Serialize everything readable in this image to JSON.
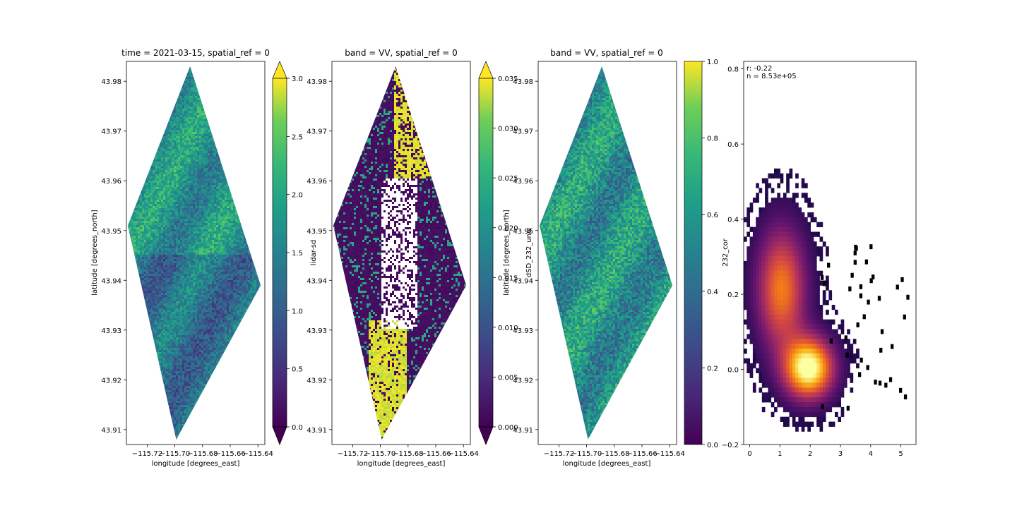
{
  "chart_data": [
    {
      "type": "heatmap",
      "title": "time = 2021-03-15, spatial_ref = 0",
      "xlabel": "longitude [degrees_east]",
      "ylabel": "latitude [degrees_north]",
      "xlim": [
        -115.735,
        -115.635
      ],
      "ylim": [
        43.907,
        43.984
      ],
      "x_ticks": [
        -115.72,
        -115.7,
        -115.68,
        -115.66,
        -115.64
      ],
      "x_tick_labels": [
        "−115.72",
        "−115.70",
        "−115.68",
        "−115.66",
        "−115.64"
      ],
      "y_ticks": [
        43.91,
        43.92,
        43.93,
        43.94,
        43.95,
        43.96,
        43.97,
        43.98
      ],
      "y_tick_labels": [
        "43.91",
        "43.92",
        "43.93",
        "43.94",
        "43.95",
        "43.96",
        "43.97",
        "43.98"
      ],
      "extent_polygon": [
        [
          -115.689,
          43.983
        ],
        [
          -115.638,
          43.939
        ],
        [
          -115.699,
          43.908
        ],
        [
          -115.734,
          43.951
        ]
      ],
      "colormap": "viridis",
      "colorbar": {
        "label": "lidar-sd",
        "range": [
          0.0,
          3.0
        ],
        "extend": "both",
        "ticks": [
          0.0,
          0.5,
          1.0,
          1.5,
          2.0,
          2.5,
          3.0
        ],
        "tick_labels": [
          "0.0",
          "0.5",
          "1.0",
          "1.5",
          "2.0",
          "2.5",
          "3.0"
        ]
      }
    },
    {
      "type": "heatmap",
      "title": "band = VV, spatial_ref = 0",
      "xlabel": "longitude [degrees_east]",
      "ylabel": "latitude [degrees_north]",
      "xlim": [
        -115.735,
        -115.635
      ],
      "ylim": [
        43.907,
        43.984
      ],
      "x_ticks": [
        -115.72,
        -115.7,
        -115.68,
        -115.66,
        -115.64
      ],
      "x_tick_labels": [
        "−115.72",
        "−115.70",
        "−115.68",
        "−115.66",
        "−115.64"
      ],
      "y_ticks": [
        43.91,
        43.92,
        43.93,
        43.94,
        43.95,
        43.96,
        43.97,
        43.98
      ],
      "y_tick_labels": [
        "43.91",
        "43.92",
        "43.93",
        "43.94",
        "43.95",
        "43.96",
        "43.97",
        "43.98"
      ],
      "extent_polygon": [
        [
          -115.689,
          43.983
        ],
        [
          -115.638,
          43.939
        ],
        [
          -115.699,
          43.908
        ],
        [
          -115.734,
          43.951
        ]
      ],
      "colormap": "viridis",
      "colorbar": {
        "label": "dSD_232_unw",
        "range": [
          0.0,
          0.035
        ],
        "extend": "both",
        "ticks": [
          0.0,
          0.005,
          0.01,
          0.015,
          0.02,
          0.025,
          0.03,
          0.035
        ],
        "tick_labels": [
          "0.000",
          "0.005",
          "0.010",
          "0.015",
          "0.020",
          "0.025",
          "0.030",
          "0.035"
        ]
      }
    },
    {
      "type": "heatmap",
      "title": "band = VV, spatial_ref = 0",
      "xlabel": "longitude [degrees_east]",
      "ylabel": "latitude [degrees_north]",
      "xlim": [
        -115.735,
        -115.635
      ],
      "ylim": [
        43.907,
        43.984
      ],
      "x_ticks": [
        -115.72,
        -115.7,
        -115.68,
        -115.66,
        -115.64
      ],
      "x_tick_labels": [
        "−115.72",
        "−115.70",
        "−115.68",
        "−115.66",
        "−115.64"
      ],
      "y_ticks": [
        43.91,
        43.92,
        43.93,
        43.94,
        43.95,
        43.96,
        43.97,
        43.98
      ],
      "y_tick_labels": [
        "43.91",
        "43.92",
        "43.93",
        "43.94",
        "43.95",
        "43.96",
        "43.97",
        "43.98"
      ],
      "extent_polygon": [
        [
          -115.689,
          43.983
        ],
        [
          -115.638,
          43.939
        ],
        [
          -115.699,
          43.908
        ],
        [
          -115.734,
          43.951
        ]
      ],
      "colormap": "viridis",
      "colorbar": {
        "label": "232_cor",
        "range": [
          0.0,
          1.0
        ],
        "extend": "neither",
        "ticks": [
          0.0,
          0.2,
          0.4,
          0.6,
          0.8,
          1.0
        ],
        "tick_labels": [
          "0.0",
          "0.2",
          "0.4",
          "0.6",
          "0.8",
          "1.0"
        ]
      }
    },
    {
      "type": "heatmap",
      "title": "",
      "xlabel": "",
      "ylabel": "",
      "xlim": [
        -0.2,
        5.5
      ],
      "ylim": [
        -0.2,
        0.82
      ],
      "x_ticks": [
        0,
        1,
        2,
        3,
        4,
        5
      ],
      "x_tick_labels": [
        "0",
        "1",
        "2",
        "3",
        "4",
        "5"
      ],
      "y_ticks": [
        -0.2,
        0.0,
        0.2,
        0.4,
        0.6,
        0.8
      ],
      "y_tick_labels": [
        "−0.2",
        "0.0",
        "0.2",
        "0.4",
        "0.6",
        "0.8"
      ],
      "colormap": "inferno",
      "annotations": [
        "r: -0.22",
        "n = 8.53e+05"
      ],
      "density_clusters": [
        {
          "x": 1.0,
          "y": 0.22,
          "sx": 0.55,
          "sy": 0.11,
          "weight": 0.62
        },
        {
          "x": 1.9,
          "y": 0.01,
          "sx": 0.55,
          "sy": 0.055,
          "weight": 1.0
        }
      ]
    }
  ]
}
